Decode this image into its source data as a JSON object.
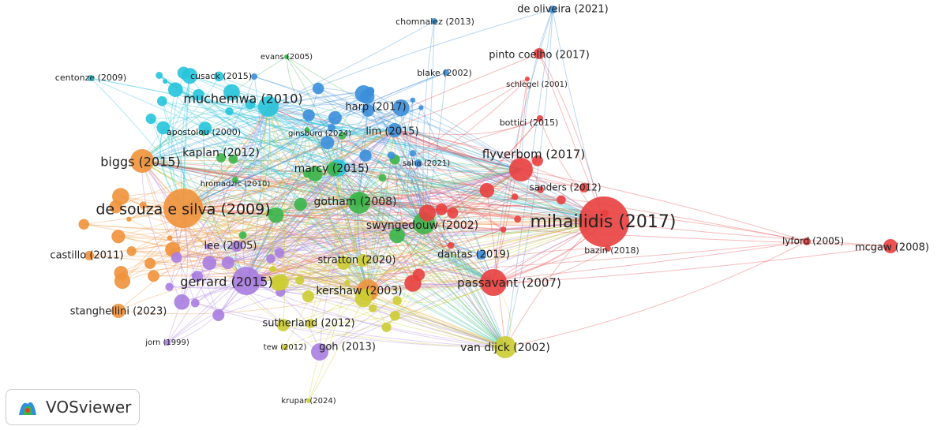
{
  "nodes": [
    {
      "label": "de oliveira (2021)"
    },
    {
      "label": "chomnalez (2013)"
    },
    {
      "label": "pinto coelho (2017)"
    },
    {
      "label": "evans (2005)"
    },
    {
      "label": "cusack (2015)"
    },
    {
      "label": "blake (2002)"
    },
    {
      "label": "centonze (2009)"
    },
    {
      "label": "schlegel (2001)"
    },
    {
      "label": "muchemwa (2010)"
    },
    {
      "label": "harp (2017)"
    },
    {
      "label": "apostolou (2000)"
    },
    {
      "label": "lim (2015)"
    },
    {
      "label": "ginsburg (2024)"
    },
    {
      "label": "bottici (2015)"
    },
    {
      "label": "kaplan (2012)"
    },
    {
      "label": "flyverbom (2017)"
    },
    {
      "label": "biggs (2015)"
    },
    {
      "label": "saha (2021)"
    },
    {
      "label": "marcy (2015)"
    },
    {
      "label": "hromadzic (2010)"
    },
    {
      "label": "sanders (2012)"
    },
    {
      "label": "gotham (2008)"
    },
    {
      "label": "de souza e silva (2009)"
    },
    {
      "label": "swyngedouw (2002)"
    },
    {
      "label": "mihailidis (2017)"
    },
    {
      "label": "lyford (2005)"
    },
    {
      "label": "mcgaw (2008)"
    },
    {
      "label": "lee (2005)"
    },
    {
      "label": "bazin (2018)"
    },
    {
      "label": "castillo (2011)"
    },
    {
      "label": "dantas (2019)"
    },
    {
      "label": "stratton (2020)"
    },
    {
      "label": "gerrard (2015)"
    },
    {
      "label": "passavant (2007)"
    },
    {
      "label": "kershaw (2003)"
    },
    {
      "label": "stanghellini (2023)"
    },
    {
      "label": "sutherland (2012)"
    },
    {
      "label": "jorn (1999)"
    },
    {
      "label": "tew (2012)"
    },
    {
      "label": "goh (2013)"
    },
    {
      "label": "van dijck (2002)"
    },
    {
      "label": "krupar (2024)"
    }
  ],
  "logo": {
    "label": "VOSviewer"
  }
}
